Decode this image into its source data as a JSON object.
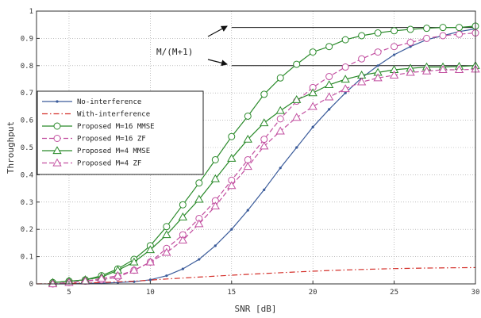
{
  "chart_data": {
    "type": "line",
    "xlabel": "SNR [dB]",
    "ylabel": "Throughput",
    "xlim": [
      3,
      30
    ],
    "ylim": [
      0,
      1
    ],
    "xticks": [
      5,
      10,
      15,
      20,
      25,
      30
    ],
    "yticks": [
      0,
      0.1,
      0.2,
      0.3,
      0.4,
      0.5,
      0.6,
      0.7,
      0.8,
      0.9,
      1
    ],
    "ytick_labels": [
      "0",
      "0.1",
      "0.2",
      "0.3",
      "0.4",
      "0.5",
      "0.6",
      "0.7",
      "0.8",
      "0.9",
      "1"
    ],
    "grid": true,
    "legend_position": "middle-left",
    "annotation": "M/(M+1)",
    "reference_levels": [
      0.94,
      0.8
    ],
    "series": [
      {
        "name": "No-interference",
        "color": "#3a5b9a",
        "dash": "solid",
        "marker": "dot",
        "x": [
          4,
          5,
          6,
          7,
          8,
          9,
          10,
          11,
          12,
          13,
          14,
          15,
          16,
          17,
          18,
          19,
          20,
          21,
          22,
          23,
          24,
          25,
          26,
          27,
          28,
          29,
          30
        ],
        "y": [
          0,
          0,
          0.002,
          0.003,
          0.005,
          0.008,
          0.015,
          0.03,
          0.055,
          0.09,
          0.14,
          0.2,
          0.27,
          0.345,
          0.425,
          0.5,
          0.575,
          0.64,
          0.7,
          0.755,
          0.8,
          0.84,
          0.87,
          0.895,
          0.91,
          0.925,
          0.935
        ]
      },
      {
        "name": "With-interference",
        "color": "#d4302a",
        "dash": "dashdot",
        "marker": "none",
        "x": [
          3,
          5,
          7,
          9,
          11,
          13,
          15,
          17,
          19,
          21,
          23,
          25,
          27,
          30
        ],
        "y": [
          0,
          0.002,
          0.005,
          0.01,
          0.018,
          0.025,
          0.032,
          0.038,
          0.044,
          0.049,
          0.053,
          0.056,
          0.058,
          0.06
        ]
      },
      {
        "name": "Proposed M=16 MMSE",
        "color": "#2a8a2a",
        "dash": "solid",
        "marker": "circle",
        "x": [
          4,
          5,
          6,
          7,
          8,
          9,
          10,
          11,
          12,
          13,
          14,
          15,
          16,
          17,
          18,
          19,
          20,
          21,
          22,
          23,
          24,
          25,
          26,
          27,
          28,
          29,
          30
        ],
        "y": [
          0.005,
          0.01,
          0.015,
          0.03,
          0.055,
          0.09,
          0.14,
          0.21,
          0.29,
          0.37,
          0.455,
          0.54,
          0.615,
          0.695,
          0.755,
          0.805,
          0.85,
          0.87,
          0.895,
          0.91,
          0.92,
          0.928,
          0.933,
          0.937,
          0.94,
          0.94,
          0.945
        ]
      },
      {
        "name": "Proposed M=16 ZF",
        "color": "#c24fa0",
        "dash": "dashed",
        "marker": "circle",
        "x": [
          4,
          5,
          6,
          7,
          8,
          9,
          10,
          11,
          12,
          13,
          14,
          15,
          16,
          17,
          18,
          19,
          20,
          21,
          22,
          23,
          24,
          25,
          26,
          27,
          28,
          29,
          30
        ],
        "y": [
          0,
          0.005,
          0.01,
          0.015,
          0.025,
          0.05,
          0.08,
          0.13,
          0.18,
          0.24,
          0.305,
          0.38,
          0.455,
          0.53,
          0.605,
          0.67,
          0.72,
          0.76,
          0.795,
          0.825,
          0.85,
          0.87,
          0.885,
          0.9,
          0.91,
          0.915,
          0.92
        ]
      },
      {
        "name": "Proposed M=4 MMSE",
        "color": "#2a8a2a",
        "dash": "solid",
        "marker": "triangle",
        "x": [
          4,
          5,
          6,
          7,
          8,
          9,
          10,
          11,
          12,
          13,
          14,
          15,
          16,
          17,
          18,
          19,
          20,
          21,
          22,
          23,
          24,
          25,
          26,
          27,
          28,
          29,
          30
        ],
        "y": [
          0.005,
          0.01,
          0.015,
          0.025,
          0.05,
          0.08,
          0.125,
          0.18,
          0.245,
          0.31,
          0.385,
          0.46,
          0.53,
          0.59,
          0.635,
          0.675,
          0.7,
          0.73,
          0.75,
          0.765,
          0.775,
          0.785,
          0.79,
          0.795,
          0.795,
          0.797,
          0.8
        ]
      },
      {
        "name": "Proposed M=4 ZF",
        "color": "#c24fa0",
        "dash": "dashed",
        "marker": "triangle",
        "x": [
          4,
          5,
          6,
          7,
          8,
          9,
          10,
          11,
          12,
          13,
          14,
          15,
          16,
          17,
          18,
          19,
          20,
          21,
          22,
          23,
          24,
          25,
          26,
          27,
          28,
          29,
          30
        ],
        "y": [
          0,
          0.005,
          0.01,
          0.02,
          0.03,
          0.05,
          0.08,
          0.115,
          0.16,
          0.22,
          0.285,
          0.36,
          0.43,
          0.505,
          0.56,
          0.61,
          0.65,
          0.685,
          0.715,
          0.74,
          0.755,
          0.765,
          0.775,
          0.78,
          0.785,
          0.785,
          0.787
        ]
      }
    ]
  }
}
